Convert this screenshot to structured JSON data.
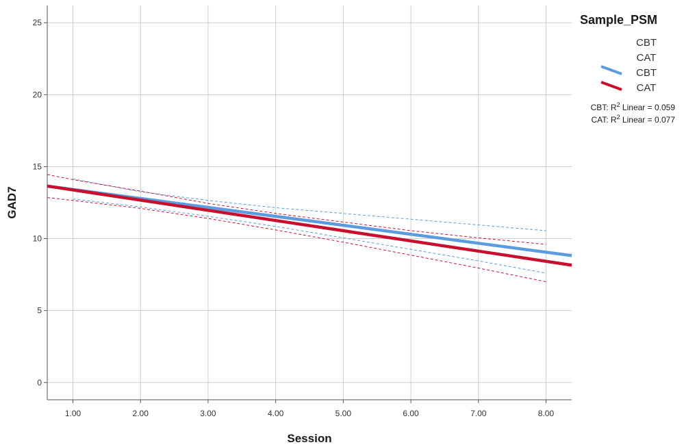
{
  "chart_data": {
    "type": "line",
    "xlabel": "Session",
    "ylabel": "GAD7",
    "xlim": [
      0.62,
      8.38
    ],
    "ylim": [
      -1.2,
      26.2
    ],
    "x_ticks": [
      1,
      2,
      3,
      4,
      5,
      6,
      7,
      8
    ],
    "x_tick_labels": [
      "1.00",
      "2.00",
      "3.00",
      "4.00",
      "5.00",
      "6.00",
      "7.00",
      "8.00"
    ],
    "y_ticks": [
      0,
      5,
      10,
      15,
      20,
      25
    ],
    "y_tick_labels": [
      "0",
      "5",
      "10",
      "15",
      "20",
      "25"
    ],
    "grid": true,
    "legend": {
      "title": "Sample_PSM",
      "placement": "right",
      "marker_entries": [
        "CBT",
        "CAT"
      ],
      "line_entries": [
        "CBT",
        "CAT"
      ],
      "r2": [
        {
          "prefix": "CBT: R",
          "sup": "2",
          "suffix": " Linear = 0.059"
        },
        {
          "prefix": "CAT: R",
          "sup": "2",
          "suffix": " Linear = 0.077"
        }
      ]
    },
    "series": [
      {
        "name": "CBT",
        "color": "#5b9bde",
        "fit": {
          "x": [
            0.62,
            8.38
          ],
          "y": [
            13.65,
            8.82
          ]
        },
        "ci_upper": {
          "x": [
            1,
            2,
            3,
            4,
            5,
            6,
            7,
            8
          ],
          "y": [
            14.15,
            13.25,
            12.65,
            12.15,
            11.75,
            11.35,
            10.95,
            10.55
          ]
        },
        "ci_lower": {
          "x": [
            1,
            2,
            3,
            4,
            5,
            6,
            7,
            8
          ],
          "y": [
            12.75,
            12.2,
            11.55,
            10.85,
            10.05,
            9.25,
            8.45,
            7.6
          ]
        }
      },
      {
        "name": "CAT",
        "color": "#c8102e",
        "fit": {
          "x": [
            0.62,
            8.38
          ],
          "y": [
            13.65,
            8.15
          ]
        },
        "ci_upper": {
          "x": [
            0.62,
            1,
            2,
            3,
            4,
            5,
            6,
            7,
            8
          ],
          "y": [
            14.45,
            14.1,
            13.3,
            12.45,
            11.75,
            11.15,
            10.55,
            10.05,
            9.6
          ]
        },
        "ci_lower": {
          "x": [
            0.62,
            1,
            2,
            3,
            4,
            5,
            6,
            7,
            8
          ],
          "y": [
            12.85,
            12.65,
            12.1,
            11.4,
            10.6,
            9.75,
            8.85,
            7.95,
            7.0
          ]
        }
      }
    ]
  }
}
